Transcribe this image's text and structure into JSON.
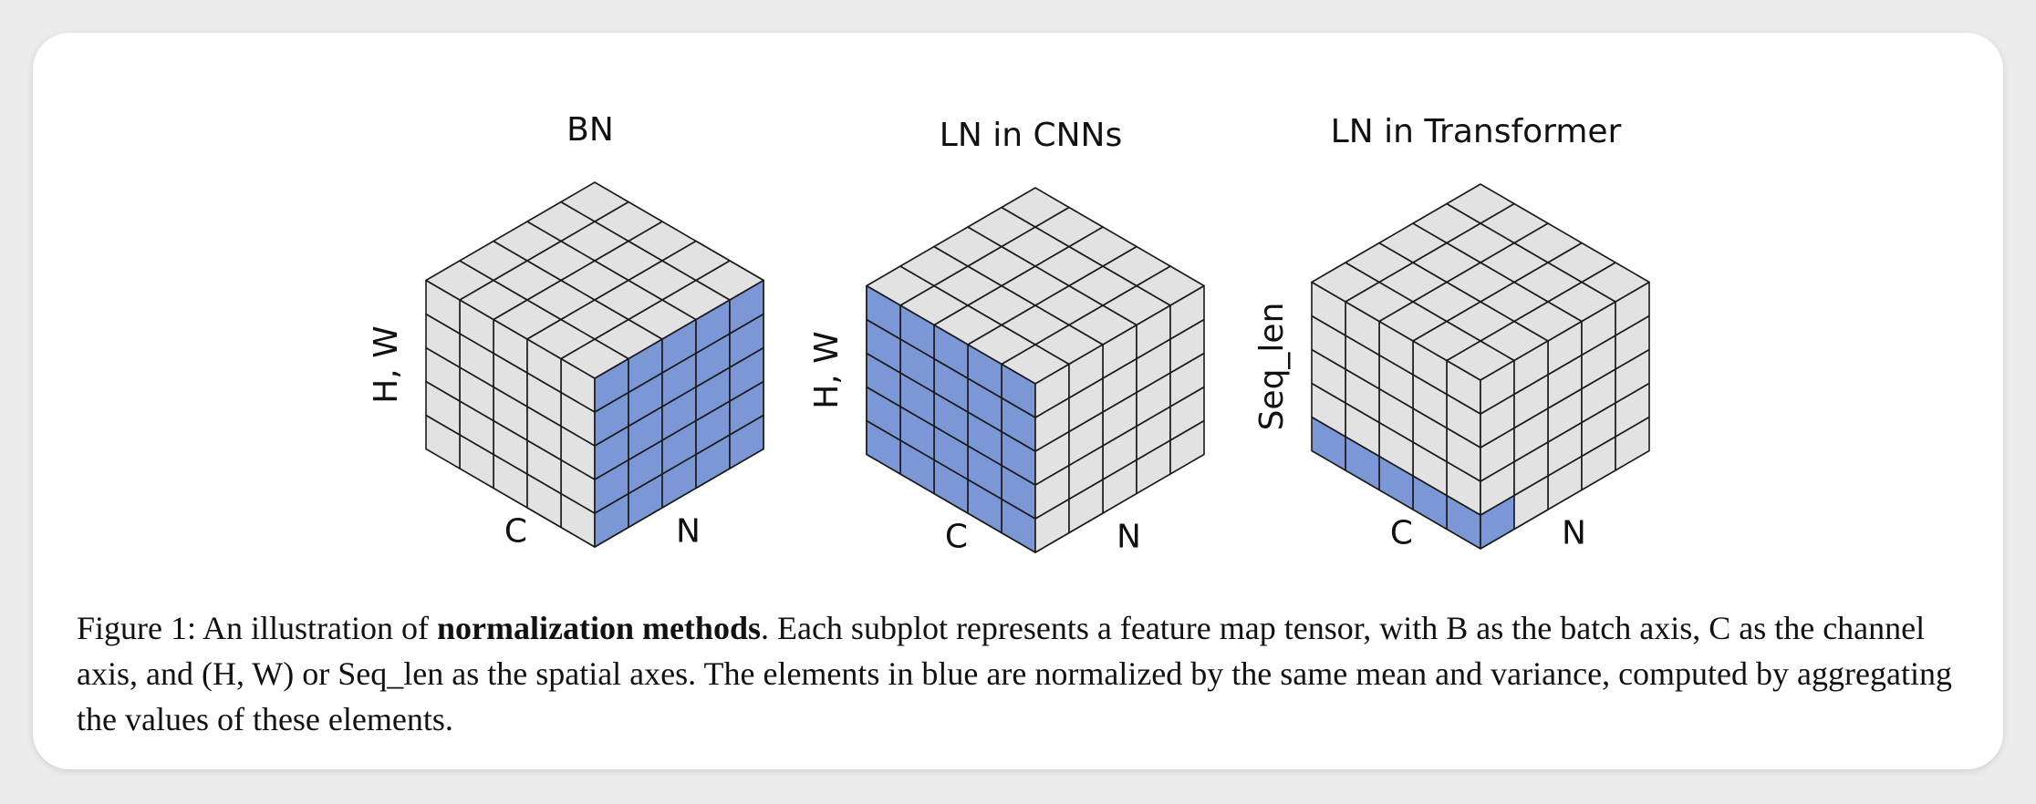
{
  "panels": [
    {
      "title": "BN",
      "vertical_label": "H, W",
      "left_axis_label": "C",
      "right_axis_label": "N",
      "highlight": "right-face-front-slice"
    },
    {
      "title": "LN in CNNs",
      "vertical_label": "H, W",
      "left_axis_label": "C",
      "right_axis_label": "N",
      "highlight": "left-face-front-slice"
    },
    {
      "title": "LN in Transformer",
      "vertical_label": "Seq_len",
      "left_axis_label": "C",
      "right_axis_label": "N",
      "highlight": "bottom-row-front-slice"
    }
  ],
  "grid_size": 5,
  "colors": {
    "grey_cell": "#e2e2e2",
    "blue_cell": "#7b97d5",
    "line": "#1a1a1a",
    "background": "#ffffff"
  },
  "caption": {
    "prefix": "Figure 1:  An illustration of ",
    "bold": "normalization methods",
    "suffix": ". Each subplot represents a feature map tensor, with B as the batch axis, C as the channel axis, and (H, W) or Seq_len as the spatial axes. The elements in blue are normalized by the same mean and variance, computed by aggregating the values of these elements."
  }
}
